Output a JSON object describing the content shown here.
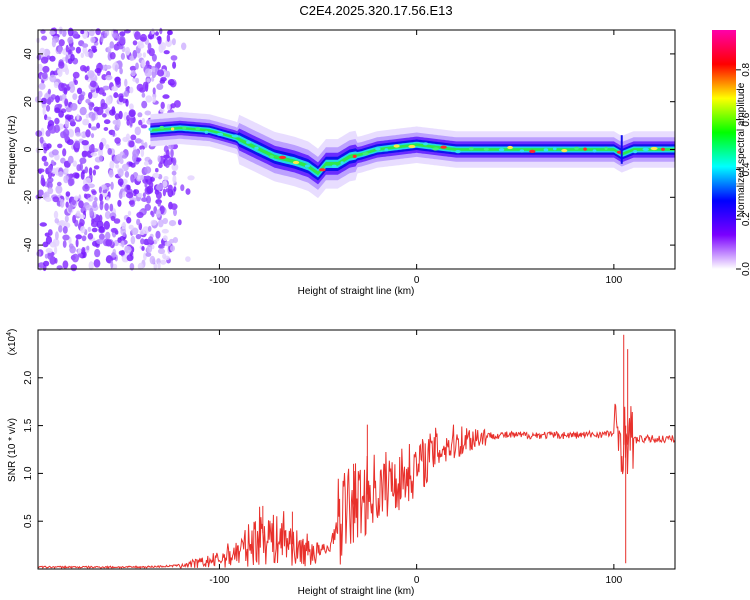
{
  "title": "C2E4.2025.320.17.56.E13",
  "chart_data": [
    {
      "type": "heatmap",
      "name": "spectrogram",
      "xlabel": "Height of straight line (km)",
      "ylabel": "Frequency (Hz)",
      "xlim": [
        -192,
        131
      ],
      "ylim": [
        -50,
        50
      ],
      "xticks": [
        -100,
        0,
        100
      ],
      "yticks": [
        -40,
        -20,
        0,
        20,
        40
      ],
      "noise_region_x": [
        -192,
        -122
      ],
      "ridge": {
        "x": [
          -135,
          -120,
          -105,
          -92,
          -82,
          -72,
          -62,
          -55,
          -50,
          -46,
          -40,
          -34,
          -28,
          -20,
          -10,
          0,
          10,
          20,
          40,
          60,
          80,
          100,
          104,
          110,
          131
        ],
        "y": [
          8,
          9,
          8,
          5,
          1,
          -3,
          -5,
          -7,
          -10,
          -6,
          -6,
          -3,
          -2,
          0,
          1,
          2,
          1,
          0,
          0,
          0,
          0,
          0,
          -2,
          0,
          0
        ]
      },
      "colorbar": {
        "label": "Normalized spectral amplitude",
        "range": [
          0,
          0.96
        ],
        "ticks": [
          "0.0",
          "0.2",
          "0.4",
          "0.6",
          "0.8"
        ],
        "colors": [
          "#ffffff",
          "#7a00ff",
          "#0000ff",
          "#00ffff",
          "#00ff00",
          "#ffff00",
          "#ff0000",
          "#ff00aa"
        ]
      }
    },
    {
      "type": "line",
      "name": "snr",
      "xlabel": "Height of straight line (km)",
      "ylabel": "SNR (10 * v/v)",
      "scale_label": "(x10",
      "scale_exp": "4",
      "scale_close": ")",
      "xlim": [
        -192,
        131
      ],
      "ylim": [
        0,
        2.5
      ],
      "xticks": [
        -100,
        0,
        100
      ],
      "yticks": [
        "0.5",
        "1.0",
        "1.5",
        "2.0"
      ],
      "color": "#e8302b",
      "series": {
        "x": [
          -192,
          -140,
          -125,
          -110,
          -100,
          -95,
          -90,
          -85,
          -80,
          -76,
          -72,
          -68,
          -65,
          -60,
          -55,
          -50,
          -45,
          -38,
          -34,
          -30,
          -25,
          -22,
          -18,
          -15,
          -10,
          -5,
          0,
          5,
          10,
          20,
          30,
          40,
          60,
          80,
          95,
          100,
          103,
          105,
          106,
          107,
          108,
          110,
          115,
          131
        ],
        "y": [
          0.02,
          0.02,
          0.03,
          0.06,
          0.1,
          0.15,
          0.18,
          0.25,
          0.35,
          0.4,
          0.28,
          0.35,
          0.3,
          0.2,
          0.2,
          0.18,
          0.2,
          0.55,
          0.65,
          0.7,
          0.78,
          0.85,
          0.8,
          0.9,
          0.92,
          1.0,
          1.05,
          1.15,
          1.25,
          1.33,
          1.38,
          1.4,
          1.4,
          1.4,
          1.41,
          1.42,
          1.4,
          1.3,
          1.5,
          1.3,
          1.4,
          1.35,
          1.36,
          1.36
        ]
      },
      "spikes": [
        {
          "x": -78,
          "y": 0.66
        },
        {
          "x": -63,
          "y": 0.6
        },
        {
          "x": -25,
          "y": 1.51
        },
        {
          "x": -32,
          "y": 1.1
        },
        {
          "x": 105,
          "y": 2.45
        },
        {
          "x": 106,
          "y": 0.06
        },
        {
          "x": 107,
          "y": 2.3
        }
      ]
    }
  ]
}
